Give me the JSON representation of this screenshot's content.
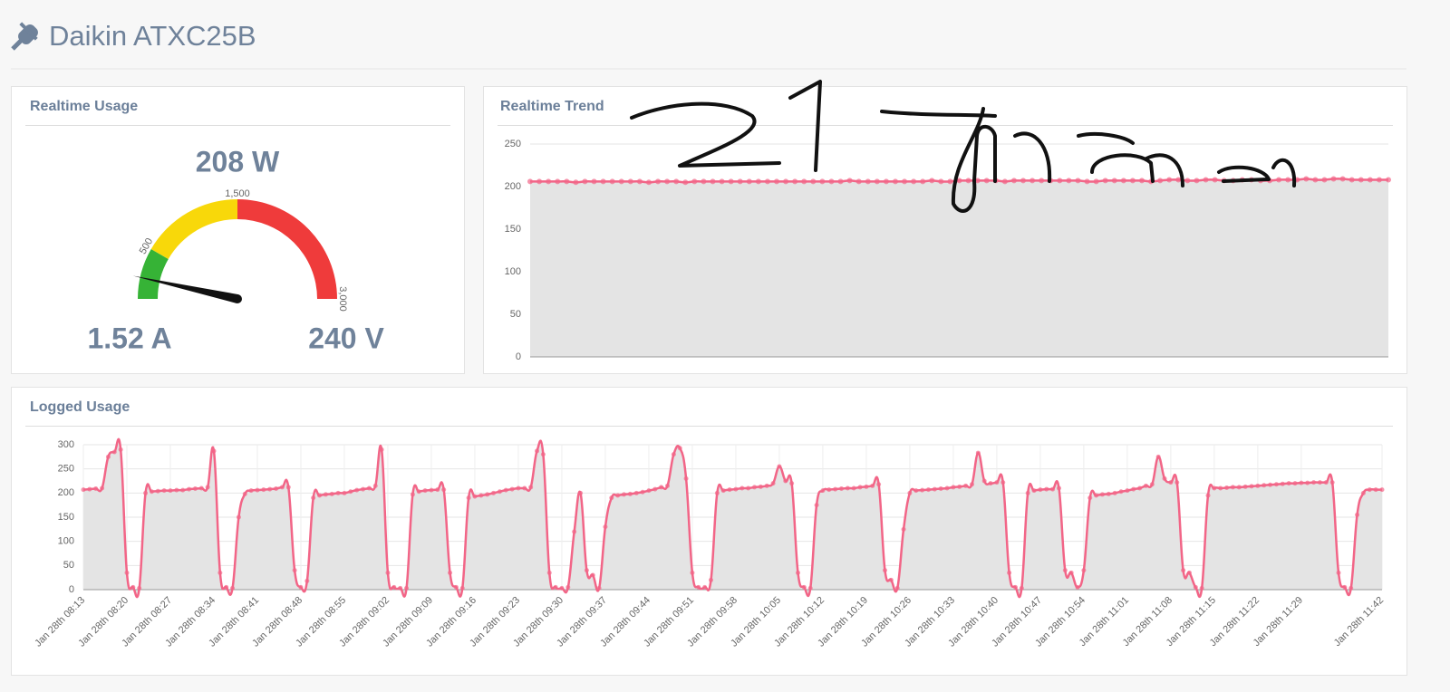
{
  "page": {
    "title": "Daikin ATXC25B"
  },
  "chart_data": [
    {
      "type": "gauge",
      "title": "Realtime Usage",
      "value": 208,
      "value_label": "208 W",
      "current_label": "1.52 A",
      "voltage_label": "240 V",
      "range": [
        0,
        3000
      ],
      "ticks": [
        500,
        {
          "value": 1500,
          "label": "1,500"
        },
        {
          "value": 3000,
          "label": "3,000"
        }
      ],
      "bands": [
        {
          "from": 0,
          "to": 500,
          "color": "#36b336"
        },
        {
          "from": 500,
          "to": 1500,
          "color": "#f8d80a"
        },
        {
          "from": 1500,
          "to": 3000,
          "color": "#ef3b3b"
        }
      ],
      "needle_color": "#111111"
    },
    {
      "type": "line",
      "title": "Realtime Trend",
      "color": "#f26587",
      "fill": "#e4e4e4",
      "ylim": [
        0,
        250
      ],
      "yticks": [
        0,
        50,
        100,
        150,
        200,
        250
      ],
      "grid": true,
      "values": [
        206,
        206,
        206,
        206,
        206,
        205,
        206,
        206,
        206,
        206,
        206,
        206,
        206,
        205,
        206,
        206,
        206,
        205,
        206,
        206,
        206,
        206,
        206,
        206,
        206,
        206,
        206,
        206,
        206,
        206,
        206,
        206,
        206,
        206,
        206,
        207,
        206,
        206,
        206,
        206,
        206,
        206,
        206,
        206,
        207,
        206,
        206,
        207,
        207,
        207,
        207,
        207,
        206,
        207,
        207,
        207,
        207,
        207,
        207,
        207,
        207,
        206,
        206,
        207,
        207,
        207,
        207,
        207,
        206,
        207,
        208,
        208,
        207,
        207,
        208,
        208,
        207,
        207,
        208,
        208,
        207,
        207,
        208,
        208,
        208,
        209,
        208,
        208,
        209,
        209,
        208,
        208,
        208,
        208,
        208
      ]
    },
    {
      "type": "line",
      "title": "Logged Usage",
      "color": "#f26587",
      "fill": "#e4e4e4",
      "ylim": [
        0,
        300
      ],
      "yticks": [
        0,
        50,
        100,
        150,
        200,
        250,
        300
      ],
      "grid": true,
      "categories": [
        "Jan 28th 08:13",
        null,
        null,
        null,
        null,
        null,
        null,
        "Jan 28th 08:20",
        null,
        null,
        null,
        null,
        null,
        null,
        "Jan 28th 08:27",
        null,
        null,
        null,
        null,
        null,
        null,
        "Jan 28th 08:34",
        null,
        null,
        null,
        null,
        null,
        null,
        "Jan 28th 08:41",
        null,
        null,
        null,
        null,
        null,
        null,
        "Jan 28th 08:48",
        null,
        null,
        null,
        null,
        null,
        null,
        "Jan 28th 08:55",
        null,
        null,
        null,
        null,
        null,
        null,
        "Jan 28th 09:02",
        null,
        null,
        null,
        null,
        null,
        null,
        "Jan 28th 09:09",
        null,
        null,
        null,
        null,
        null,
        null,
        "Jan 28th 09:16",
        null,
        null,
        null,
        null,
        null,
        null,
        "Jan 28th 09:23",
        null,
        null,
        null,
        null,
        null,
        null,
        "Jan 28th 09:30",
        null,
        null,
        null,
        null,
        null,
        null,
        "Jan 28th 09:37",
        null,
        null,
        null,
        null,
        null,
        null,
        "Jan 28th 09:44",
        null,
        null,
        null,
        null,
        null,
        null,
        "Jan 28th 09:51",
        null,
        null,
        null,
        null,
        null,
        null,
        "Jan 28th 09:58",
        null,
        null,
        null,
        null,
        null,
        null,
        "Jan 28th 10:05",
        null,
        null,
        null,
        null,
        null,
        null,
        "Jan 28th 10:12",
        null,
        null,
        null,
        null,
        null,
        null,
        "Jan 28th 10:19",
        null,
        null,
        null,
        null,
        null,
        null,
        "Jan 28th 10:26",
        null,
        null,
        null,
        null,
        null,
        null,
        "Jan 28th 10:33",
        null,
        null,
        null,
        null,
        null,
        null,
        "Jan 28th 10:40",
        null,
        null,
        null,
        null,
        null,
        null,
        "Jan 28th 10:47",
        null,
        null,
        null,
        null,
        null,
        null,
        "Jan 28th 10:54",
        null,
        null,
        null,
        null,
        null,
        null,
        "Jan 28th 11:01",
        null,
        null,
        null,
        null,
        null,
        null,
        "Jan 28th 11:08",
        null,
        null,
        null,
        null,
        null,
        null,
        "Jan 28th 11:15",
        null,
        null,
        null,
        null,
        null,
        null,
        "Jan 28th 11:22",
        null,
        null,
        null,
        null,
        null,
        null,
        "Jan 28th 11:29",
        null,
        null,
        null,
        null,
        null,
        null,
        null,
        null,
        null,
        null,
        null,
        null,
        "Jan 28th 11:42"
      ],
      "values": [
        207,
        208,
        209,
        210,
        275,
        285,
        290,
        35,
        5,
        3,
        200,
        203,
        204,
        205,
        205,
        206,
        206,
        208,
        209,
        210,
        212,
        287,
        35,
        5,
        3,
        150,
        198,
        205,
        206,
        207,
        208,
        209,
        212,
        212,
        40,
        5,
        18,
        190,
        195,
        197,
        198,
        200,
        200,
        203,
        206,
        208,
        210,
        215,
        290,
        35,
        5,
        3,
        3,
        197,
        203,
        205,
        206,
        207,
        207,
        35,
        5,
        3,
        190,
        193,
        195,
        197,
        200,
        203,
        206,
        208,
        210,
        210,
        212,
        287,
        280,
        35,
        5,
        3,
        5,
        120,
        200,
        40,
        30,
        3,
        130,
        190,
        195,
        197,
        198,
        200,
        202,
        205,
        208,
        212,
        215,
        280,
        293,
        230,
        35,
        5,
        5,
        20,
        200,
        205,
        207,
        208,
        210,
        210,
        212,
        213,
        215,
        220,
        255,
        225,
        220,
        35,
        5,
        3,
        175,
        205,
        207,
        208,
        209,
        210,
        210,
        212,
        213,
        215,
        218,
        40,
        20,
        3,
        125,
        200,
        205,
        206,
        207,
        208,
        209,
        210,
        212,
        213,
        215,
        218,
        283,
        225,
        220,
        222,
        222,
        35,
        5,
        3,
        200,
        205,
        207,
        208,
        208,
        210,
        40,
        35,
        5,
        40,
        190,
        195,
        197,
        198,
        200,
        203,
        205,
        208,
        210,
        215,
        218,
        275,
        230,
        222,
        222,
        40,
        35,
        5,
        3,
        195,
        210,
        210,
        211,
        212,
        212,
        213,
        214,
        215,
        216,
        217,
        218,
        219,
        220,
        220,
        221,
        221,
        222,
        222,
        222,
        222,
        35,
        5,
        3,
        155,
        200,
        207,
        207,
        207
      ]
    }
  ]
}
